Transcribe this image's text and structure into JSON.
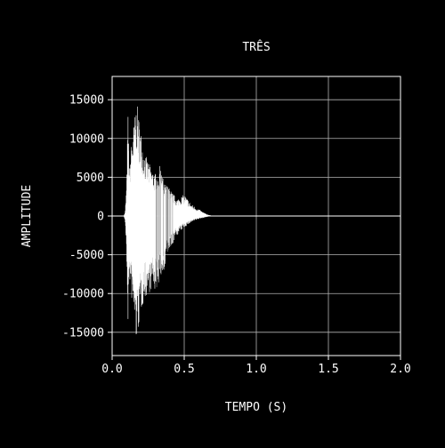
{
  "chart_data": {
    "type": "line",
    "title": "TRÊS",
    "xlabel": "TEMPO (S)",
    "ylabel": "AMPLITUDE",
    "xlim": [
      0.0,
      2.0
    ],
    "ylim": [
      -18000,
      18000
    ],
    "xticks": [
      0.0,
      0.5,
      1.0,
      1.5,
      2.0
    ],
    "xtick_labels": [
      "0.0",
      "0.5",
      "1.0",
      "1.5",
      "2.0"
    ],
    "yticks": [
      15000,
      10000,
      5000,
      0,
      -5000,
      -10000,
      -15000
    ],
    "ytick_labels": [
      "15000",
      "10000",
      "5000",
      "0",
      "-5000",
      "-10000",
      "-15000"
    ],
    "grid": true,
    "colors": {
      "background": "#000000",
      "waveform": "#ffffff",
      "grid": "#b3b3b3",
      "axes": "#ffffff"
    },
    "series": [
      {
        "envelope_upper": {
          "x": [
            0.0,
            0.08,
            0.09,
            0.1,
            0.11,
            0.12,
            0.13,
            0.15,
            0.17,
            0.18,
            0.2,
            0.22,
            0.25,
            0.28,
            0.3,
            0.33,
            0.36,
            0.4,
            0.45,
            0.5,
            0.55,
            0.6,
            0.65,
            0.68,
            0.7,
            2.0
          ],
          "y": [
            0,
            0,
            500,
            4000,
            13500,
            6000,
            9000,
            12000,
            14800,
            13500,
            11000,
            8500,
            7000,
            6000,
            5500,
            6500,
            4500,
            3500,
            2200,
            2800,
            1500,
            900,
            300,
            100,
            0,
            0
          ]
        },
        "envelope_lower": {
          "x": [
            0.0,
            0.08,
            0.09,
            0.1,
            0.11,
            0.12,
            0.13,
            0.15,
            0.17,
            0.18,
            0.2,
            0.22,
            0.25,
            0.28,
            0.3,
            0.33,
            0.36,
            0.4,
            0.45,
            0.5,
            0.55,
            0.6,
            0.65,
            0.68,
            0.7,
            2.0
          ],
          "y": [
            0,
            0,
            -600,
            -5000,
            -14000,
            -8000,
            -10000,
            -13000,
            -16800,
            -15000,
            -12500,
            -11000,
            -10000,
            -9500,
            -9800,
            -8500,
            -7000,
            -4500,
            -2500,
            -1500,
            -800,
            -400,
            -150,
            -50,
            0,
            0
          ]
        }
      }
    ]
  }
}
